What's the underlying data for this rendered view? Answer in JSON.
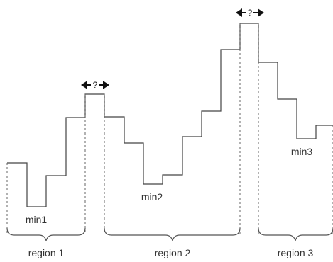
{
  "minima": {
    "min1": "min1",
    "min2": "min2",
    "min3": "min3"
  },
  "regions": {
    "region1": "region 1",
    "region2": "region 2",
    "region3": "region 3"
  },
  "uncertain_marker": "?"
}
